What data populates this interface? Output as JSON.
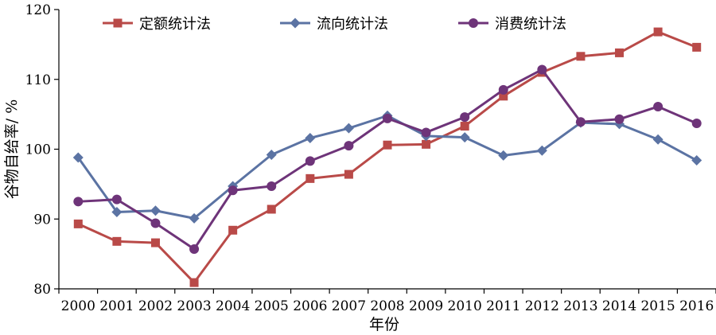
{
  "chart_data": {
    "type": "line",
    "title": "",
    "xlabel": "年份",
    "ylabel": "谷物自给率/ %",
    "ylim": [
      80,
      120
    ],
    "yticks": [
      80,
      90,
      100,
      110,
      120
    ],
    "categories": [
      "2000",
      "2001",
      "2002",
      "2003",
      "2004",
      "2005",
      "2006",
      "2007",
      "2008",
      "2009",
      "2010",
      "2011",
      "2012",
      "2013",
      "2014",
      "2015",
      "2016"
    ],
    "legend_position": "top",
    "grid": false,
    "series": [
      {
        "name": "定额统计法",
        "color": "#b94a48",
        "marker": "square",
        "values": [
          89.3,
          86.8,
          86.6,
          80.9,
          88.4,
          91.4,
          95.8,
          96.4,
          100.6,
          100.7,
          103.3,
          107.6,
          111.0,
          113.3,
          113.8,
          116.8,
          114.6
        ]
      },
      {
        "name": "流向统计法",
        "color": "#5b73a3",
        "marker": "diamond",
        "values": [
          98.8,
          91.0,
          91.2,
          90.1,
          94.7,
          99.2,
          101.6,
          103.0,
          104.8,
          101.9,
          101.7,
          99.1,
          99.8,
          103.8,
          103.6,
          101.4,
          98.4
        ]
      },
      {
        "name": "消费统计法",
        "color": "#6e3479",
        "marker": "circle",
        "values": [
          92.5,
          92.8,
          89.4,
          85.7,
          94.1,
          94.7,
          98.3,
          100.5,
          104.4,
          102.4,
          104.6,
          108.5,
          111.4,
          103.9,
          104.3,
          106.1,
          103.7
        ]
      }
    ]
  }
}
